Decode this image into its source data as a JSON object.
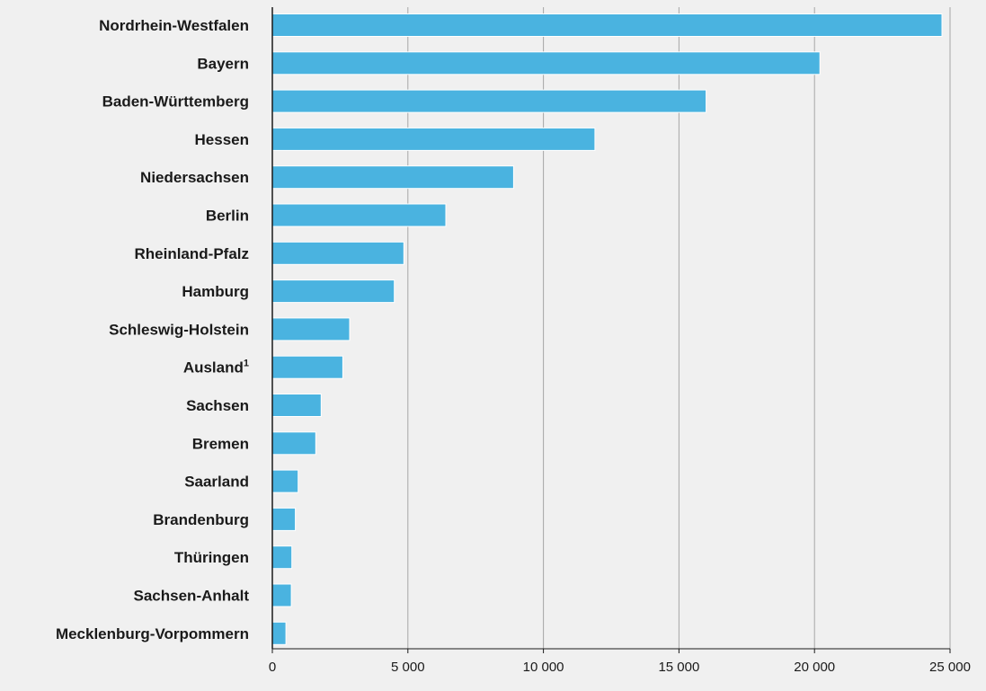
{
  "chart_data": {
    "type": "bar",
    "orientation": "horizontal",
    "categories": [
      "Nordrhein-Westfalen",
      "Bayern",
      "Baden-Württemberg",
      "Hessen",
      "Niedersachsen",
      "Berlin",
      "Rheinland-Pfalz",
      "Hamburg",
      "Schleswig-Holstein",
      "Ausland",
      "Sachsen",
      "Bremen",
      "Saarland",
      "Brandenburg",
      "Thüringen",
      "Sachsen-Anhalt",
      "Mecklenburg-Vorpommern"
    ],
    "footnote_marks": [
      "",
      "",
      "",
      "",
      "",
      "",
      "",
      "",
      "",
      "1",
      "",
      "",
      "",
      "",
      "",
      "",
      ""
    ],
    "values": [
      24700,
      20200,
      16000,
      11900,
      8900,
      6400,
      4850,
      4500,
      2850,
      2600,
      1800,
      1600,
      950,
      850,
      720,
      700,
      500
    ],
    "xlim": [
      0,
      25000
    ],
    "xticks": [
      0,
      5000,
      10000,
      15000,
      20000,
      25000
    ],
    "xtick_labels": [
      "0",
      "5 000",
      "10 000",
      "15 000",
      "20 000",
      "25 000"
    ],
    "title": "",
    "xlabel": "",
    "ylabel": "",
    "grid": "vertical",
    "colors": {
      "bar": "#4ab3e0",
      "grid": "#a6a6a6",
      "axis": "#1a1a1a",
      "background": "#f0f0f0"
    }
  }
}
